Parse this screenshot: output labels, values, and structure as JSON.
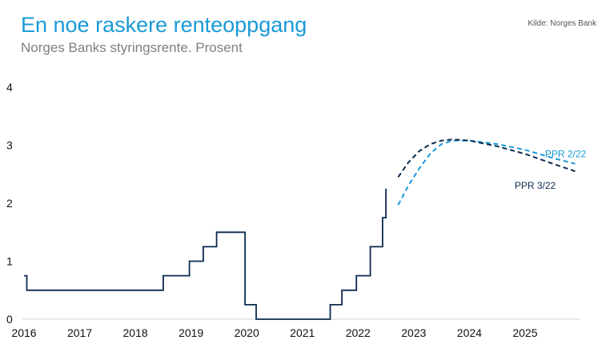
{
  "header": {
    "title": "En noe raskere renteoppgang",
    "subtitle": "Norges Banks styringsrente. Prosent",
    "source": "Kilde: Norges Bank"
  },
  "colors": {
    "title": "#1a9ad6",
    "historic": "#0c2b4e",
    "ppr_2_22": "#1a9ad6",
    "ppr_3_22": "#0c2b4e"
  },
  "chart_data": {
    "type": "line",
    "title": "En noe raskere renteoppgang",
    "subtitle": "Norges Banks styringsrente. Prosent",
    "xlabel": "",
    "ylabel": "",
    "xlim": [
      2016.0,
      2025.95
    ],
    "ylim": [
      0,
      4
    ],
    "x_ticks": [
      2016,
      2017,
      2018,
      2019,
      2020,
      2021,
      2022,
      2023,
      2024,
      2025
    ],
    "y_ticks": [
      0,
      1,
      2,
      3,
      4
    ],
    "grid": false,
    "series": [
      {
        "name": "",
        "style": "step",
        "points": [
          [
            2016.0,
            0.75
          ],
          [
            2016.05,
            0.75
          ],
          [
            2016.05,
            0.5
          ],
          [
            2018.5,
            0.5
          ],
          [
            2018.5,
            0.75
          ],
          [
            2018.97,
            0.75
          ],
          [
            2018.97,
            1.0
          ],
          [
            2019.22,
            1.0
          ],
          [
            2019.22,
            1.25
          ],
          [
            2019.46,
            1.25
          ],
          [
            2019.46,
            1.5
          ],
          [
            2019.97,
            1.5
          ],
          [
            2019.97,
            0.25
          ],
          [
            2020.17,
            0.25
          ],
          [
            2020.17,
            0.0
          ],
          [
            2021.5,
            0.0
          ],
          [
            2021.5,
            0.25
          ],
          [
            2021.71,
            0.25
          ],
          [
            2021.71,
            0.5
          ],
          [
            2021.97,
            0.5
          ],
          [
            2021.97,
            0.75
          ],
          [
            2022.22,
            0.75
          ],
          [
            2022.22,
            1.25
          ],
          [
            2022.44,
            1.25
          ],
          [
            2022.44,
            1.75
          ],
          [
            2022.5,
            1.75
          ],
          [
            2022.5,
            2.25
          ]
        ]
      },
      {
        "name": "PPR 2/22",
        "style": "dashed",
        "points": [
          [
            2022.72,
            1.97
          ],
          [
            2022.9,
            2.3
          ],
          [
            2023.1,
            2.6
          ],
          [
            2023.3,
            2.86
          ],
          [
            2023.5,
            3.02
          ],
          [
            2023.7,
            3.08
          ],
          [
            2024.0,
            3.08
          ],
          [
            2024.5,
            3.02
          ],
          [
            2025.0,
            2.92
          ],
          [
            2025.5,
            2.78
          ],
          [
            2025.9,
            2.68
          ]
        ]
      },
      {
        "name": "PPR 3/22",
        "style": "dashed",
        "points": [
          [
            2022.72,
            2.45
          ],
          [
            2022.9,
            2.7
          ],
          [
            2023.1,
            2.9
          ],
          [
            2023.3,
            3.02
          ],
          [
            2023.5,
            3.08
          ],
          [
            2023.7,
            3.1
          ],
          [
            2024.0,
            3.08
          ],
          [
            2024.5,
            2.98
          ],
          [
            2025.0,
            2.85
          ],
          [
            2025.5,
            2.68
          ],
          [
            2025.9,
            2.55
          ]
        ]
      }
    ],
    "annotations": [
      {
        "text": "PPR 2/22",
        "series": "PPR 2/22"
      },
      {
        "text": "PPR 3/22",
        "series": "PPR 3/22"
      }
    ]
  }
}
